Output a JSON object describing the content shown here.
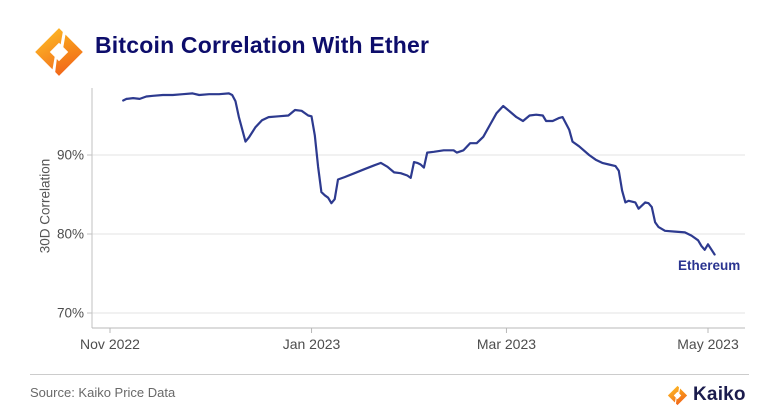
{
  "header": {
    "title": "Bitcoin Correlation With Ether"
  },
  "chart_data": {
    "type": "line",
    "title": "Bitcoin Correlation With Ether",
    "xlabel": "",
    "ylabel": "30D Correlation",
    "grid": "horizontal-only",
    "legend_position": "inline-annotation-bottom-right",
    "x_axis_range": [
      "2022-10-27",
      "2023-05-12"
    ],
    "x_epoch": "2022-11-01",
    "ylim": [
      68,
      98.5
    ],
    "y_ticks": [
      {
        "value": 70,
        "label": "70%"
      },
      {
        "value": 80,
        "label": "80%"
      },
      {
        "value": 90,
        "label": "90%"
      }
    ],
    "x_ticks": [
      {
        "date": "2022-11-01",
        "label": "Nov 2022"
      },
      {
        "date": "2023-01-01",
        "label": "Jan 2023"
      },
      {
        "date": "2023-03-01",
        "label": "Mar 2023"
      },
      {
        "date": "2023-05-01",
        "label": "May 2023"
      }
    ],
    "colors": {
      "line": "#2d3a8f",
      "grid": "#e3e3e3",
      "axis": "#c2c2c2",
      "x_axis": "#b8b8b8",
      "tick_label": "#4d4d4d"
    },
    "series": [
      {
        "name": "Ethereum",
        "color": "#2d3a8f",
        "points": [
          [
            "2022-11-05",
            96.9
          ],
          [
            "2022-11-06",
            97.1
          ],
          [
            "2022-11-08",
            97.2
          ],
          [
            "2022-11-10",
            97.1
          ],
          [
            "2022-11-12",
            97.4
          ],
          [
            "2022-11-14",
            97.5
          ],
          [
            "2022-11-17",
            97.6
          ],
          [
            "2022-11-20",
            97.6
          ],
          [
            "2022-11-23",
            97.7
          ],
          [
            "2022-11-26",
            97.8
          ],
          [
            "2022-11-28",
            97.6
          ],
          [
            "2022-12-01",
            97.7
          ],
          [
            "2022-12-04",
            97.7
          ],
          [
            "2022-12-07",
            97.8
          ],
          [
            "2022-12-08",
            97.6
          ],
          [
            "2022-12-09",
            96.8
          ],
          [
            "2022-12-10",
            94.8
          ],
          [
            "2022-12-12",
            91.7
          ],
          [
            "2022-12-13",
            92.2
          ],
          [
            "2022-12-15",
            93.5
          ],
          [
            "2022-12-17",
            94.4
          ],
          [
            "2022-12-19",
            94.8
          ],
          [
            "2022-12-22",
            94.9
          ],
          [
            "2022-12-25",
            95.0
          ],
          [
            "2022-12-27",
            95.7
          ],
          [
            "2022-12-29",
            95.6
          ],
          [
            "2022-12-31",
            95.0
          ],
          [
            "2023-01-01",
            94.9
          ],
          [
            "2023-01-02",
            92.5
          ],
          [
            "2023-01-03",
            88.5
          ],
          [
            "2023-01-04",
            85.3
          ],
          [
            "2023-01-05",
            84.9
          ],
          [
            "2023-01-06",
            84.6
          ],
          [
            "2023-01-07",
            83.9
          ],
          [
            "2023-01-08",
            84.4
          ],
          [
            "2023-01-09",
            86.9
          ],
          [
            "2023-01-11",
            87.2
          ],
          [
            "2023-01-14",
            87.7
          ],
          [
            "2023-01-17",
            88.2
          ],
          [
            "2023-01-20",
            88.7
          ],
          [
            "2023-01-22",
            89.0
          ],
          [
            "2023-01-24",
            88.5
          ],
          [
            "2023-01-26",
            87.8
          ],
          [
            "2023-01-28",
            87.7
          ],
          [
            "2023-01-30",
            87.4
          ],
          [
            "2023-01-31",
            87.1
          ],
          [
            "2023-02-01",
            89.1
          ],
          [
            "2023-02-02",
            89.0
          ],
          [
            "2023-02-03",
            88.8
          ],
          [
            "2023-02-04",
            88.4
          ],
          [
            "2023-02-05",
            90.3
          ],
          [
            "2023-02-07",
            90.4
          ],
          [
            "2023-02-10",
            90.6
          ],
          [
            "2023-02-13",
            90.6
          ],
          [
            "2023-02-14",
            90.3
          ],
          [
            "2023-02-16",
            90.6
          ],
          [
            "2023-02-18",
            91.5
          ],
          [
            "2023-02-20",
            91.5
          ],
          [
            "2023-02-22",
            92.3
          ],
          [
            "2023-02-24",
            93.8
          ],
          [
            "2023-02-26",
            95.3
          ],
          [
            "2023-02-28",
            96.2
          ],
          [
            "2023-03-02",
            95.5
          ],
          [
            "2023-03-04",
            94.8
          ],
          [
            "2023-03-06",
            94.3
          ],
          [
            "2023-03-08",
            95.0
          ],
          [
            "2023-03-10",
            95.1
          ],
          [
            "2023-03-12",
            95.0
          ],
          [
            "2023-03-13",
            94.3
          ],
          [
            "2023-03-15",
            94.3
          ],
          [
            "2023-03-17",
            94.7
          ],
          [
            "2023-03-18",
            94.8
          ],
          [
            "2023-03-20",
            93.2
          ],
          [
            "2023-03-21",
            91.7
          ],
          [
            "2023-03-23",
            91.1
          ],
          [
            "2023-03-26",
            90.0
          ],
          [
            "2023-03-28",
            89.4
          ],
          [
            "2023-03-30",
            89.0
          ],
          [
            "2023-04-01",
            88.8
          ],
          [
            "2023-04-03",
            88.6
          ],
          [
            "2023-04-04",
            88.0
          ],
          [
            "2023-04-05",
            85.5
          ],
          [
            "2023-04-06",
            84.0
          ],
          [
            "2023-04-07",
            84.2
          ],
          [
            "2023-04-09",
            84.0
          ],
          [
            "2023-04-10",
            83.2
          ],
          [
            "2023-04-12",
            84.0
          ],
          [
            "2023-04-13",
            83.9
          ],
          [
            "2023-04-14",
            83.4
          ],
          [
            "2023-04-15",
            81.5
          ],
          [
            "2023-04-16",
            80.9
          ],
          [
            "2023-04-18",
            80.4
          ],
          [
            "2023-04-21",
            80.3
          ],
          [
            "2023-04-24",
            80.2
          ],
          [
            "2023-04-26",
            79.8
          ],
          [
            "2023-04-28",
            79.2
          ],
          [
            "2023-04-29",
            78.5
          ],
          [
            "2023-04-30",
            78.0
          ],
          [
            "2023-05-01",
            78.7
          ],
          [
            "2023-05-03",
            77.4
          ]
        ]
      }
    ],
    "annotation": "Ethereum"
  },
  "footer": {
    "source": "Source: Kaiko Price Data",
    "brand": "Kaiko"
  }
}
